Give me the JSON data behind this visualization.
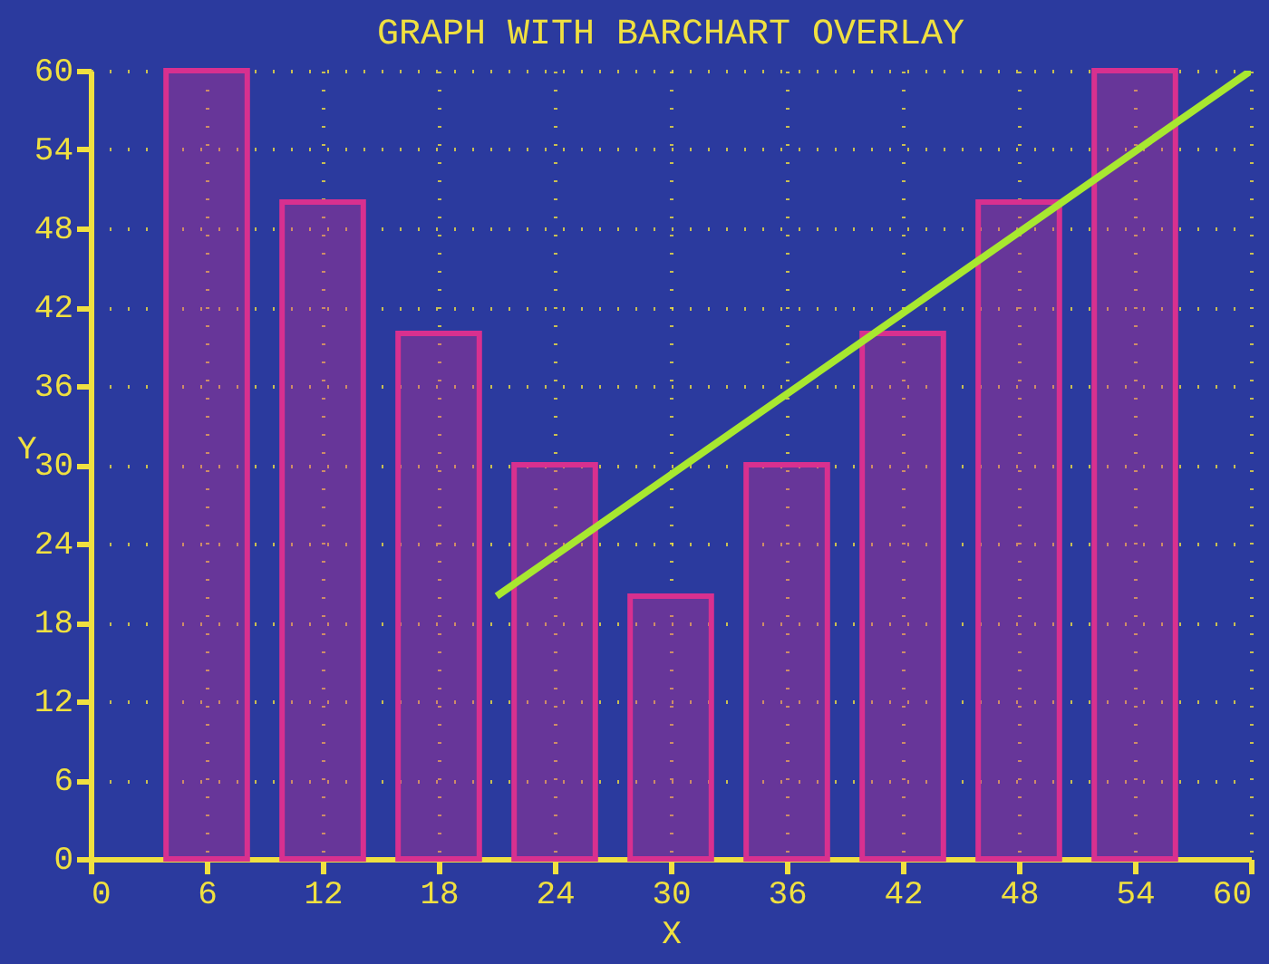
{
  "chart_data": {
    "type": "bar",
    "title": "GRAPH WITH BARCHART OVERLAY",
    "xlabel": "X",
    "ylabel": "Y",
    "x": [
      6,
      12,
      18,
      24,
      30,
      36,
      42,
      48,
      54
    ],
    "series": [
      {
        "color": "#d8308f",
        "values": [
          60,
          50,
          40,
          30,
          20,
          30,
          40,
          50,
          60
        ]
      },
      {
        "type": "line",
        "color": "#a8e830",
        "x": [
          21,
          60
        ],
        "values": [
          20,
          60
        ]
      }
    ],
    "xlim": [
      0,
      60
    ],
    "xticks": [
      0,
      6,
      12,
      18,
      24,
      30,
      36,
      42,
      48,
      54,
      60
    ],
    "ylim": [
      0,
      60
    ],
    "yticks": [
      0,
      6,
      12,
      18,
      24,
      30,
      36,
      42,
      48,
      54,
      60
    ],
    "grid": true,
    "marker": "none",
    "line_style": "solid"
  }
}
